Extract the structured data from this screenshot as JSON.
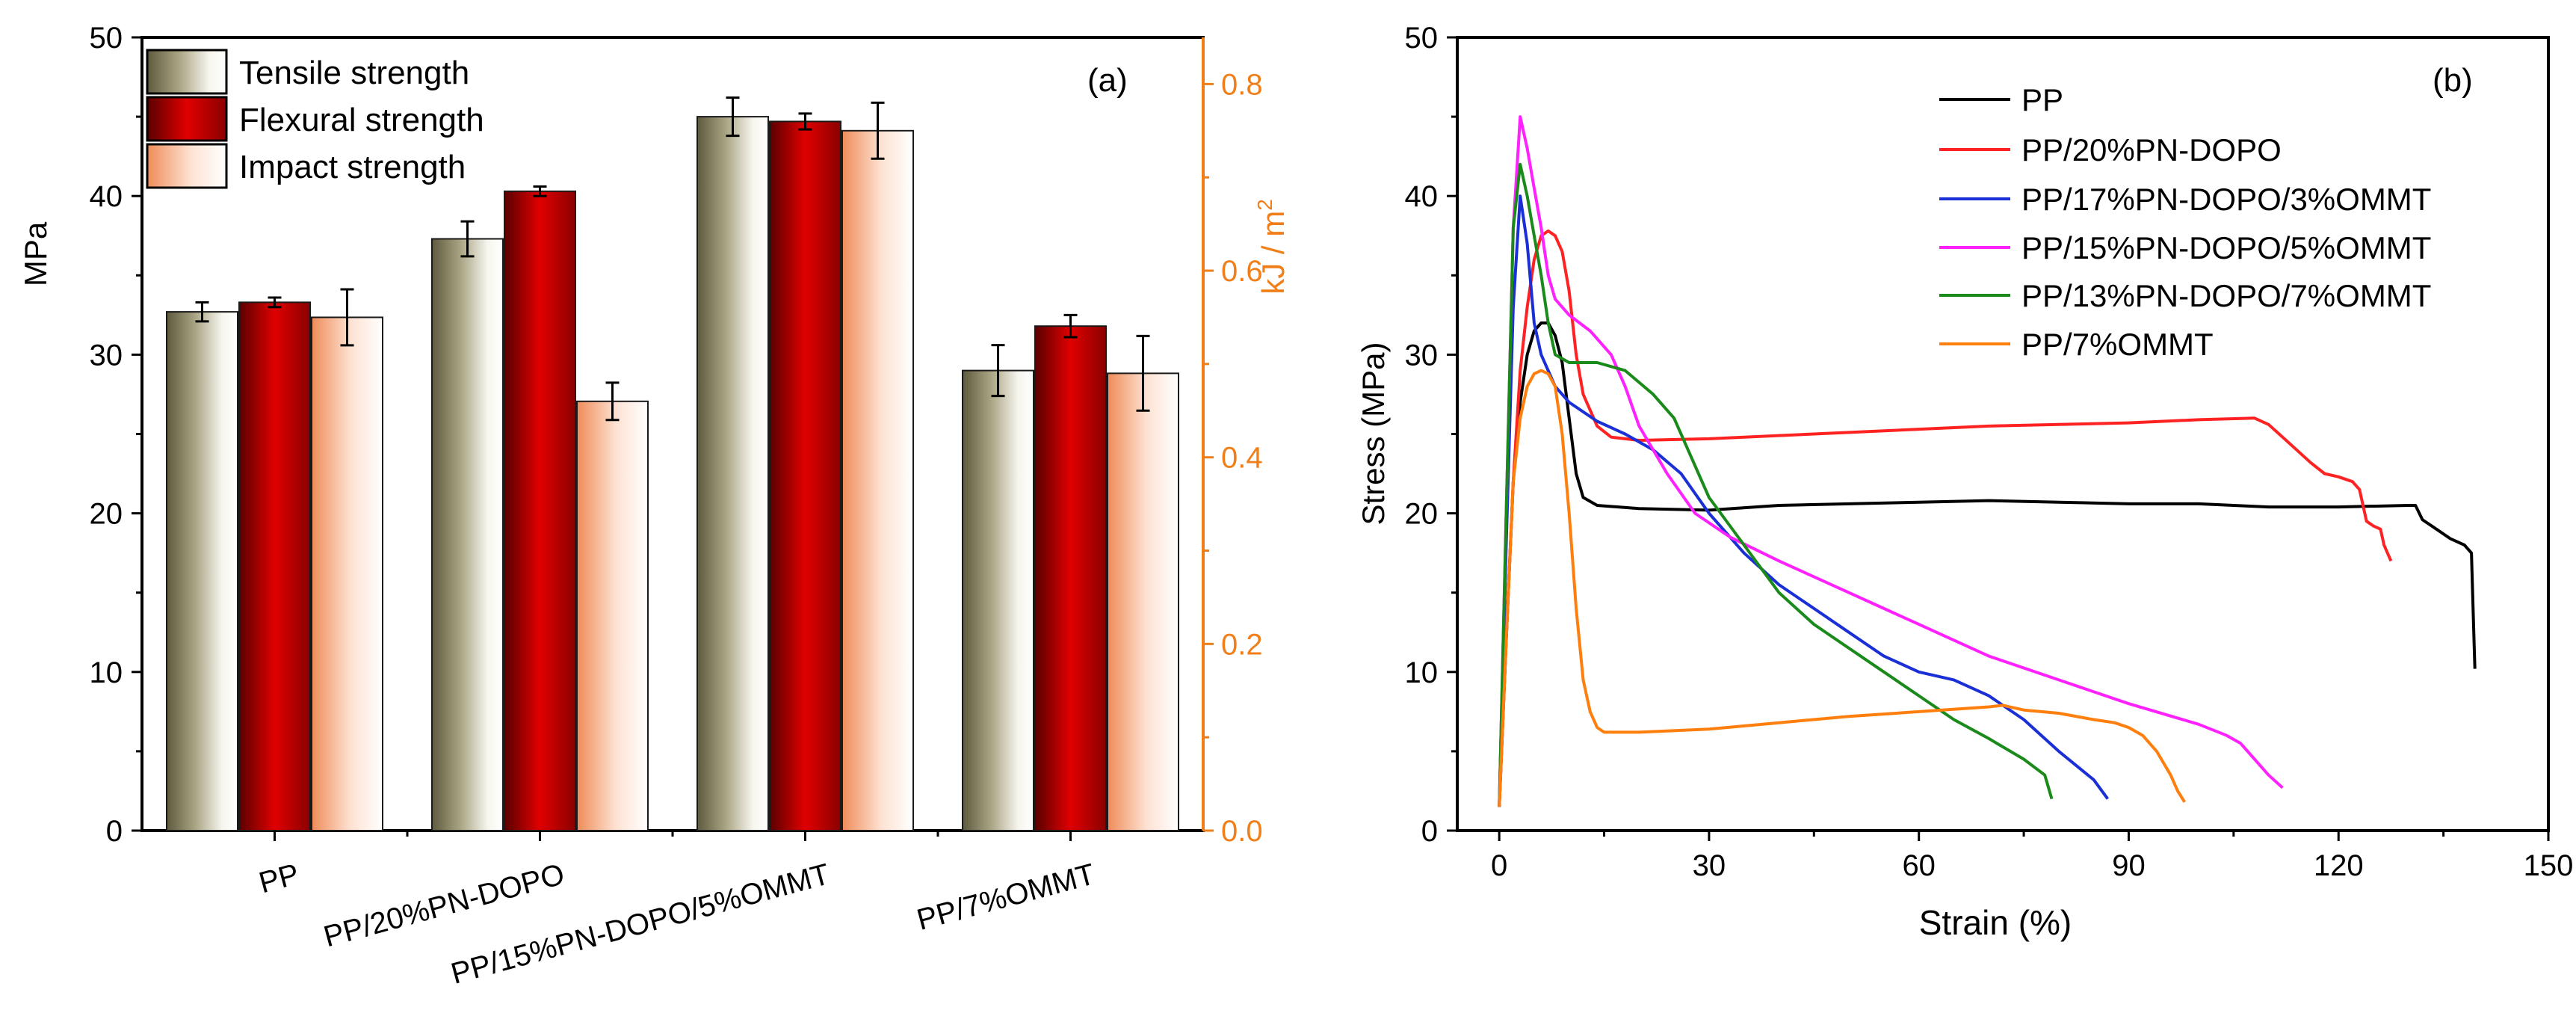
{
  "chart_data": [
    {
      "panel": "(a)",
      "type": "bar",
      "categories": [
        "PP",
        "PP/20%PN-DOPO",
        "PP/15%PN-DOPO/5%OMMT",
        "PP/7%OMMT"
      ],
      "ylabel": "MPa",
      "ylim": [
        0,
        50
      ],
      "yticks": [
        0,
        10,
        20,
        30,
        40,
        50
      ],
      "y2label_main": "kJ / m",
      "y2label_sup": "2",
      "y2lim": [
        0,
        0.85
      ],
      "y2ticks": [
        "0.0",
        "0.2",
        "0.4",
        "0.6",
        "0.8"
      ],
      "series": [
        {
          "name": "Tensile strength",
          "axis": "left",
          "values": [
            32.7,
            37.3,
            45.0,
            29.0
          ],
          "errors": [
            0.6,
            1.1,
            1.2,
            1.6
          ]
        },
        {
          "name": "Flexural strength",
          "axis": "left",
          "values": [
            33.3,
            40.3,
            44.7,
            31.8
          ],
          "errors": [
            0.3,
            0.3,
            0.5,
            0.7
          ]
        },
        {
          "name": "Impact strength",
          "axis": "right",
          "values": [
            0.55,
            0.46,
            0.75,
            0.49
          ],
          "errors": [
            0.03,
            0.02,
            0.03,
            0.04
          ]
        }
      ],
      "colors": {
        "tensile": "#8f8a6a",
        "flexural": "#c00000",
        "impact": "#f4a27a",
        "right_axis": "#f07f1a"
      }
    },
    {
      "panel": "(b)",
      "type": "line",
      "xlabel": "Strain (%)",
      "ylabel": "Stress (MPa)",
      "xlim": [
        -6,
        150
      ],
      "ylim": [
        0,
        50
      ],
      "xticks": [
        0,
        30,
        60,
        90,
        120,
        150
      ],
      "yticks": [
        0,
        10,
        20,
        30,
        40,
        50
      ],
      "series": [
        {
          "name": "PP",
          "color": "#000000",
          "points": [
            [
              0,
              1.5
            ],
            [
              1,
              12
            ],
            [
              2,
              22
            ],
            [
              3,
              27
            ],
            [
              4,
              30
            ],
            [
              5,
              31.5
            ],
            [
              6,
              32
            ],
            [
              7,
              32
            ],
            [
              8,
              31.2
            ],
            [
              9,
              29.5
            ],
            [
              10,
              26
            ],
            [
              11,
              22.5
            ],
            [
              12,
              21
            ],
            [
              14,
              20.5
            ],
            [
              20,
              20.3
            ],
            [
              30,
              20.2
            ],
            [
              40,
              20.5
            ],
            [
              50,
              20.6
            ],
            [
              60,
              20.7
            ],
            [
              70,
              20.8
            ],
            [
              80,
              20.7
            ],
            [
              90,
              20.6
            ],
            [
              100,
              20.6
            ],
            [
              110,
              20.4
            ],
            [
              120,
              20.4
            ],
            [
              130,
              20.5
            ],
            [
              131,
              20.5
            ],
            [
              132,
              19.6
            ],
            [
              134,
              19.0
            ],
            [
              136,
              18.4
            ],
            [
              138,
              18.0
            ],
            [
              139,
              17.5
            ],
            [
              139.3,
              13
            ],
            [
              139.5,
              10.2
            ]
          ]
        },
        {
          "name": "PP/20%PN-DOPO",
          "color": "#ff2222",
          "points": [
            [
              0,
              1.5
            ],
            [
              1,
              12
            ],
            [
              2,
              22
            ],
            [
              3,
              29
            ],
            [
              4,
              33
            ],
            [
              5,
              36
            ],
            [
              6,
              37.5
            ],
            [
              7,
              37.8
            ],
            [
              8,
              37.5
            ],
            [
              9,
              36.5
            ],
            [
              10,
              34
            ],
            [
              11,
              30
            ],
            [
              12,
              27.5
            ],
            [
              14,
              25.5
            ],
            [
              16,
              24.8
            ],
            [
              20,
              24.6
            ],
            [
              30,
              24.7
            ],
            [
              40,
              24.9
            ],
            [
              50,
              25.1
            ],
            [
              60,
              25.3
            ],
            [
              70,
              25.5
            ],
            [
              80,
              25.6
            ],
            [
              90,
              25.7
            ],
            [
              100,
              25.9
            ],
            [
              108,
              26.0
            ],
            [
              110,
              25.6
            ],
            [
              112,
              24.8
            ],
            [
              114,
              24.0
            ],
            [
              116,
              23.2
            ],
            [
              118,
              22.5
            ],
            [
              120,
              22.3
            ],
            [
              122,
              22.0
            ],
            [
              123,
              21.5
            ],
            [
              124,
              19.5
            ],
            [
              125,
              19.2
            ],
            [
              126,
              19.0
            ],
            [
              126.5,
              18.0
            ],
            [
              127.5,
              17.0
            ]
          ]
        },
        {
          "name": "PP/17%PN-DOPO/3%OMMT",
          "color": "#1a2fd6",
          "points": [
            [
              0,
              1.5
            ],
            [
              1,
              18
            ],
            [
              2,
              33
            ],
            [
              3,
              40
            ],
            [
              4,
              37
            ],
            [
              5,
              32
            ],
            [
              6,
              30
            ],
            [
              8,
              28
            ],
            [
              10,
              27
            ],
            [
              14,
              25.8
            ],
            [
              18,
              25
            ],
            [
              22,
              24
            ],
            [
              26,
              22.5
            ],
            [
              30,
              20
            ],
            [
              35,
              17.5
            ],
            [
              40,
              15.5
            ],
            [
              45,
              14
            ],
            [
              50,
              12.5
            ],
            [
              55,
              11
            ],
            [
              60,
              10
            ],
            [
              65,
              9.5
            ],
            [
              70,
              8.5
            ],
            [
              75,
              7
            ],
            [
              80,
              5
            ],
            [
              85,
              3.2
            ],
            [
              87,
              2
            ]
          ]
        },
        {
          "name": "PP/15%PN-DOPO/5%OMMT",
          "color": "#ff22ff",
          "points": [
            [
              0,
              1.5
            ],
            [
              1,
              20
            ],
            [
              2,
              38
            ],
            [
              3,
              45
            ],
            [
              4,
              43
            ],
            [
              5,
              40.5
            ],
            [
              6,
              38
            ],
            [
              7,
              35
            ],
            [
              8,
              33.5
            ],
            [
              10,
              32.5
            ],
            [
              13,
              31.5
            ],
            [
              16,
              30
            ],
            [
              18,
              28
            ],
            [
              20,
              25.5
            ],
            [
              24,
              22.5
            ],
            [
              28,
              20
            ],
            [
              33,
              18.5
            ],
            [
              40,
              17
            ],
            [
              50,
              15
            ],
            [
              60,
              13
            ],
            [
              70,
              11
            ],
            [
              80,
              9.5
            ],
            [
              90,
              8
            ],
            [
              100,
              6.7
            ],
            [
              104,
              6
            ],
            [
              106,
              5.5
            ],
            [
              108,
              4.5
            ],
            [
              110,
              3.5
            ],
            [
              112,
              2.7
            ]
          ]
        },
        {
          "name": "PP/13%PN-DOPO/7%OMMT",
          "color": "#1a8a1a",
          "points": [
            [
              0,
              1.5
            ],
            [
              1,
              20
            ],
            [
              2,
              38
            ],
            [
              3,
              42
            ],
            [
              4,
              40
            ],
            [
              5,
              37.5
            ],
            [
              6,
              35
            ],
            [
              7,
              32
            ],
            [
              8,
              30
            ],
            [
              10,
              29.5
            ],
            [
              14,
              29.5
            ],
            [
              18,
              29
            ],
            [
              22,
              27.5
            ],
            [
              25,
              26
            ],
            [
              30,
              21
            ],
            [
              35,
              18
            ],
            [
              40,
              15
            ],
            [
              45,
              13
            ],
            [
              50,
              11.5
            ],
            [
              55,
              10
            ],
            [
              60,
              8.5
            ],
            [
              65,
              7
            ],
            [
              70,
              5.8
            ],
            [
              75,
              4.5
            ],
            [
              78,
              3.5
            ],
            [
              79,
              2
            ]
          ]
        },
        {
          "name": "PP/7%OMMT",
          "color": "#ff7f0e",
          "points": [
            [
              0,
              1.5
            ],
            [
              1,
              12
            ],
            [
              2,
              22
            ],
            [
              3,
              26
            ],
            [
              4,
              28
            ],
            [
              5,
              28.8
            ],
            [
              6,
              29
            ],
            [
              7,
              28.8
            ],
            [
              8,
              28
            ],
            [
              9,
              25
            ],
            [
              10,
              20
            ],
            [
              11,
              14
            ],
            [
              12,
              9.5
            ],
            [
              13,
              7.5
            ],
            [
              14,
              6.5
            ],
            [
              15,
              6.2
            ],
            [
              20,
              6.2
            ],
            [
              30,
              6.4
            ],
            [
              40,
              6.8
            ],
            [
              50,
              7.2
            ],
            [
              60,
              7.5
            ],
            [
              70,
              7.8
            ],
            [
              72,
              7.9
            ],
            [
              75,
              7.6
            ],
            [
              80,
              7.4
            ],
            [
              85,
              7.0
            ],
            [
              88,
              6.8
            ],
            [
              90,
              6.5
            ],
            [
              92,
              6.0
            ],
            [
              94,
              5.0
            ],
            [
              96,
              3.5
            ],
            [
              97,
              2.5
            ],
            [
              98,
              1.8
            ]
          ]
        }
      ]
    }
  ],
  "panel_a": {
    "label": "(a)",
    "ylabel": "MPa",
    "y2label": "kJ / m",
    "y2label_sup": "2",
    "yticks": [
      "0",
      "10",
      "20",
      "30",
      "40",
      "50"
    ],
    "y2ticks": [
      "0.0",
      "0.2",
      "0.4",
      "0.6",
      "0.8"
    ],
    "categories": [
      "PP",
      "PP/20%PN-DOPO",
      "PP/15%PN-DOPO/5%OMMT",
      "PP/7%OMMT"
    ],
    "legend": [
      "Tensile strength",
      "Flexural strength",
      "Impact strength"
    ]
  },
  "panel_b": {
    "label": "(b)",
    "xlabel": "Strain (%)",
    "ylabel": "Stress (MPa)",
    "xticks": [
      "0",
      "30",
      "60",
      "90",
      "120",
      "150"
    ],
    "yticks": [
      "0",
      "10",
      "20",
      "30",
      "40",
      "50"
    ],
    "legend": [
      "PP",
      "PP/20%PN-DOPO",
      "PP/17%PN-DOPO/3%OMMT",
      "PP/15%PN-DOPO/5%OMMT",
      "PP/13%PN-DOPO/7%OMMT",
      "PP/7%OMMT"
    ]
  }
}
